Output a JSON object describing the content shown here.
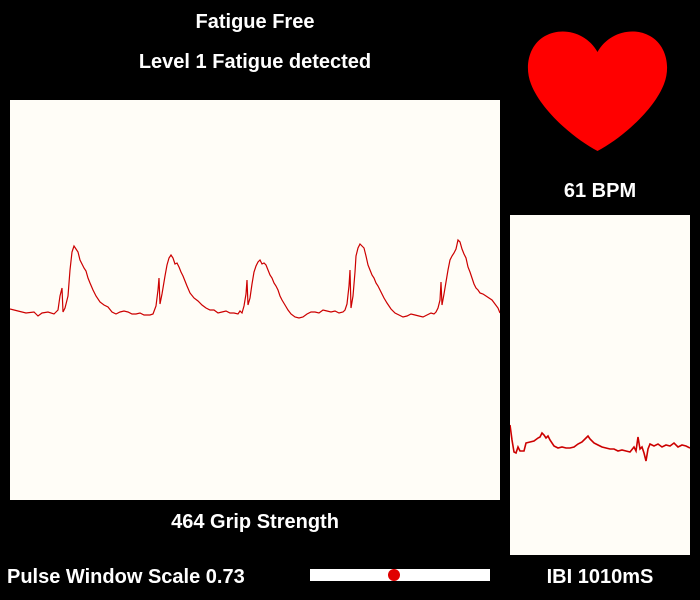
{
  "status": {
    "title": "Fatigue Free",
    "subtitle": "Level 1 Fatigue detected"
  },
  "grip": {
    "label": "464 Grip Strength"
  },
  "heart": {
    "icon": "heart-icon",
    "color": "#ff0000",
    "bpm_label": "61 BPM"
  },
  "ibi": {
    "label": "IBI 1010mS"
  },
  "pulse_scale": {
    "label": "Pulse Window Scale 0.73",
    "value": 0.73
  },
  "colors": {
    "background": "#000000",
    "panel": "#fffdf7",
    "trace": "#cc0000",
    "slider_knob": "#e00000"
  }
}
